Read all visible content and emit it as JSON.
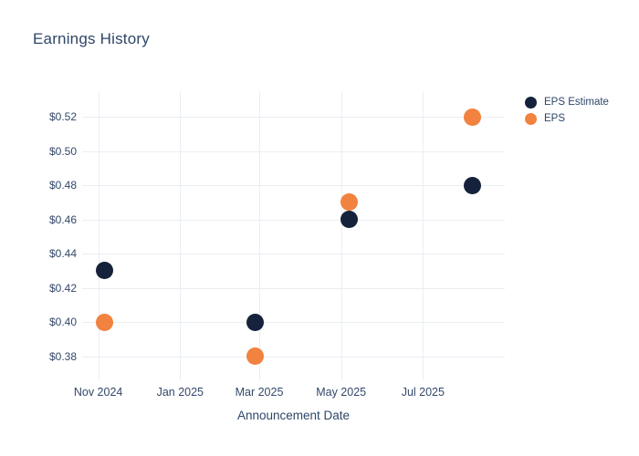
{
  "page": {
    "background_color": "#ffffff",
    "text_color": "#2e4668"
  },
  "chart_data": {
    "type": "scatter",
    "title": "Earnings History",
    "xlabel": "Announcement Date",
    "ylabel": "",
    "grid": true,
    "legend_position": "outside-top-right",
    "gridline_color": "#e9eef4",
    "xlim": [
      "2024-10-20",
      "2025-08-31"
    ],
    "ylim": [
      0.366,
      0.535
    ],
    "x_ticks": [
      {
        "date": "2024-11-01",
        "label": "Nov 2024"
      },
      {
        "date": "2025-01-01",
        "label": "Jan 2025"
      },
      {
        "date": "2025-03-01",
        "label": "Mar 2025"
      },
      {
        "date": "2025-05-01",
        "label": "May 2025"
      },
      {
        "date": "2025-07-01",
        "label": "Jul 2025"
      }
    ],
    "y_ticks": [
      {
        "value": 0.38,
        "label": "$0.38"
      },
      {
        "value": 0.4,
        "label": "$0.40"
      },
      {
        "value": 0.42,
        "label": "$0.42"
      },
      {
        "value": 0.44,
        "label": "$0.44"
      },
      {
        "value": 0.46,
        "label": "$0.46"
      },
      {
        "value": 0.48,
        "label": "$0.48"
      },
      {
        "value": 0.5,
        "label": "$0.50"
      },
      {
        "value": 0.52,
        "label": "$0.52"
      }
    ],
    "series": [
      {
        "name": "EPS Estimate",
        "color": "#15223b",
        "points": [
          {
            "date": "2024-11-06",
            "value": 0.43
          },
          {
            "date": "2025-02-26",
            "value": 0.4
          },
          {
            "date": "2025-05-07",
            "value": 0.46
          },
          {
            "date": "2025-08-07",
            "value": 0.48
          }
        ]
      },
      {
        "name": "EPS",
        "color": "#f2823f",
        "points": [
          {
            "date": "2024-11-06",
            "value": 0.4
          },
          {
            "date": "2025-02-26",
            "value": 0.38
          },
          {
            "date": "2025-05-07",
            "value": 0.47
          },
          {
            "date": "2025-08-07",
            "value": 0.52
          }
        ]
      }
    ]
  }
}
